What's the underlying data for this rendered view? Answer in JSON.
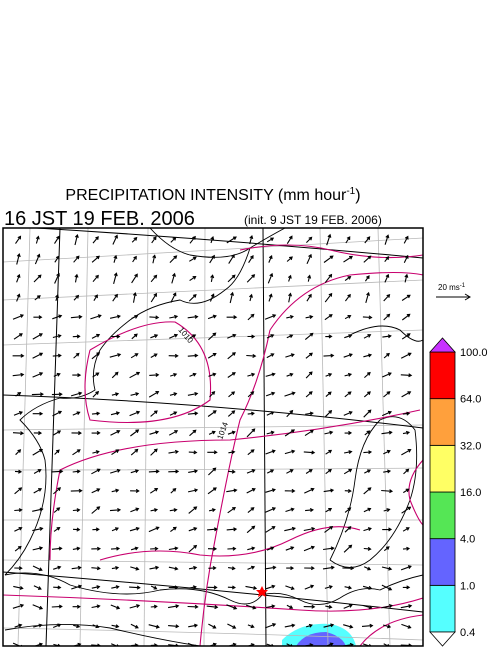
{
  "header": {
    "title": "PRECIPITATION INTENSITY (mm hour",
    "title_sup": "-1",
    "title_end": ")",
    "valid_time": "16 JST 19 FEB. 2006",
    "init_time": "(init. 9 JST 19 FEB. 2006)"
  },
  "vector_legend": {
    "label": "20 ms",
    "sup": "-1"
  },
  "contours": {
    "labels": [
      "1010",
      "1014"
    ]
  },
  "colorbar": {
    "labels": [
      "0.4",
      "1.0",
      "4.0",
      "16.0",
      "32.0",
      "64.0",
      "100.0"
    ],
    "colors": [
      "#55ffff",
      "#6464ff",
      "#55e655",
      "#ffff64",
      "#ffa03c",
      "#ff0000"
    ],
    "under_color": "#ffffff",
    "over_color": "#c832ff"
  }
}
